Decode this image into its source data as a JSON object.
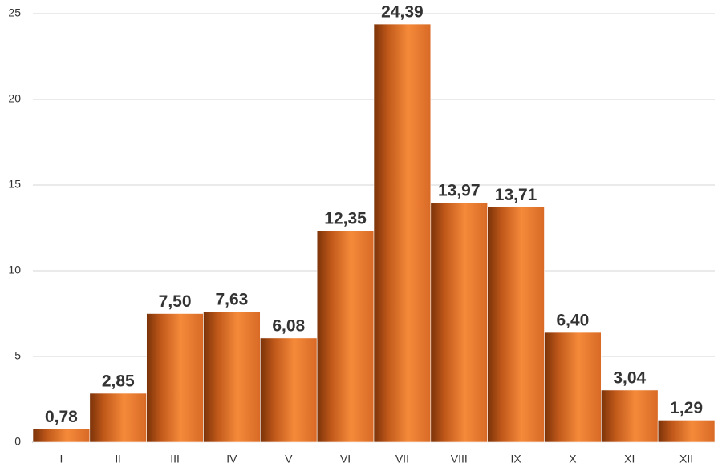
{
  "chart_data": {
    "type": "bar",
    "categories": [
      "I",
      "II",
      "III",
      "IV",
      "V",
      "VI",
      "VII",
      "VIII",
      "IX",
      "X",
      "XI",
      "XII"
    ],
    "values": [
      0.78,
      2.85,
      7.5,
      7.63,
      6.08,
      12.35,
      24.39,
      13.97,
      13.71,
      6.4,
      3.04,
      1.29
    ],
    "value_labels": [
      "0,78",
      "2,85",
      "7,50",
      "7,63",
      "6,08",
      "12,35",
      "24,39",
      "13,97",
      "13,71",
      "6,40",
      "3,04",
      "1,29"
    ],
    "color": "#f58a3a",
    "ylim": [
      0,
      25
    ],
    "yticks": [
      0,
      5,
      10,
      15,
      20,
      25
    ],
    "grid": true
  }
}
